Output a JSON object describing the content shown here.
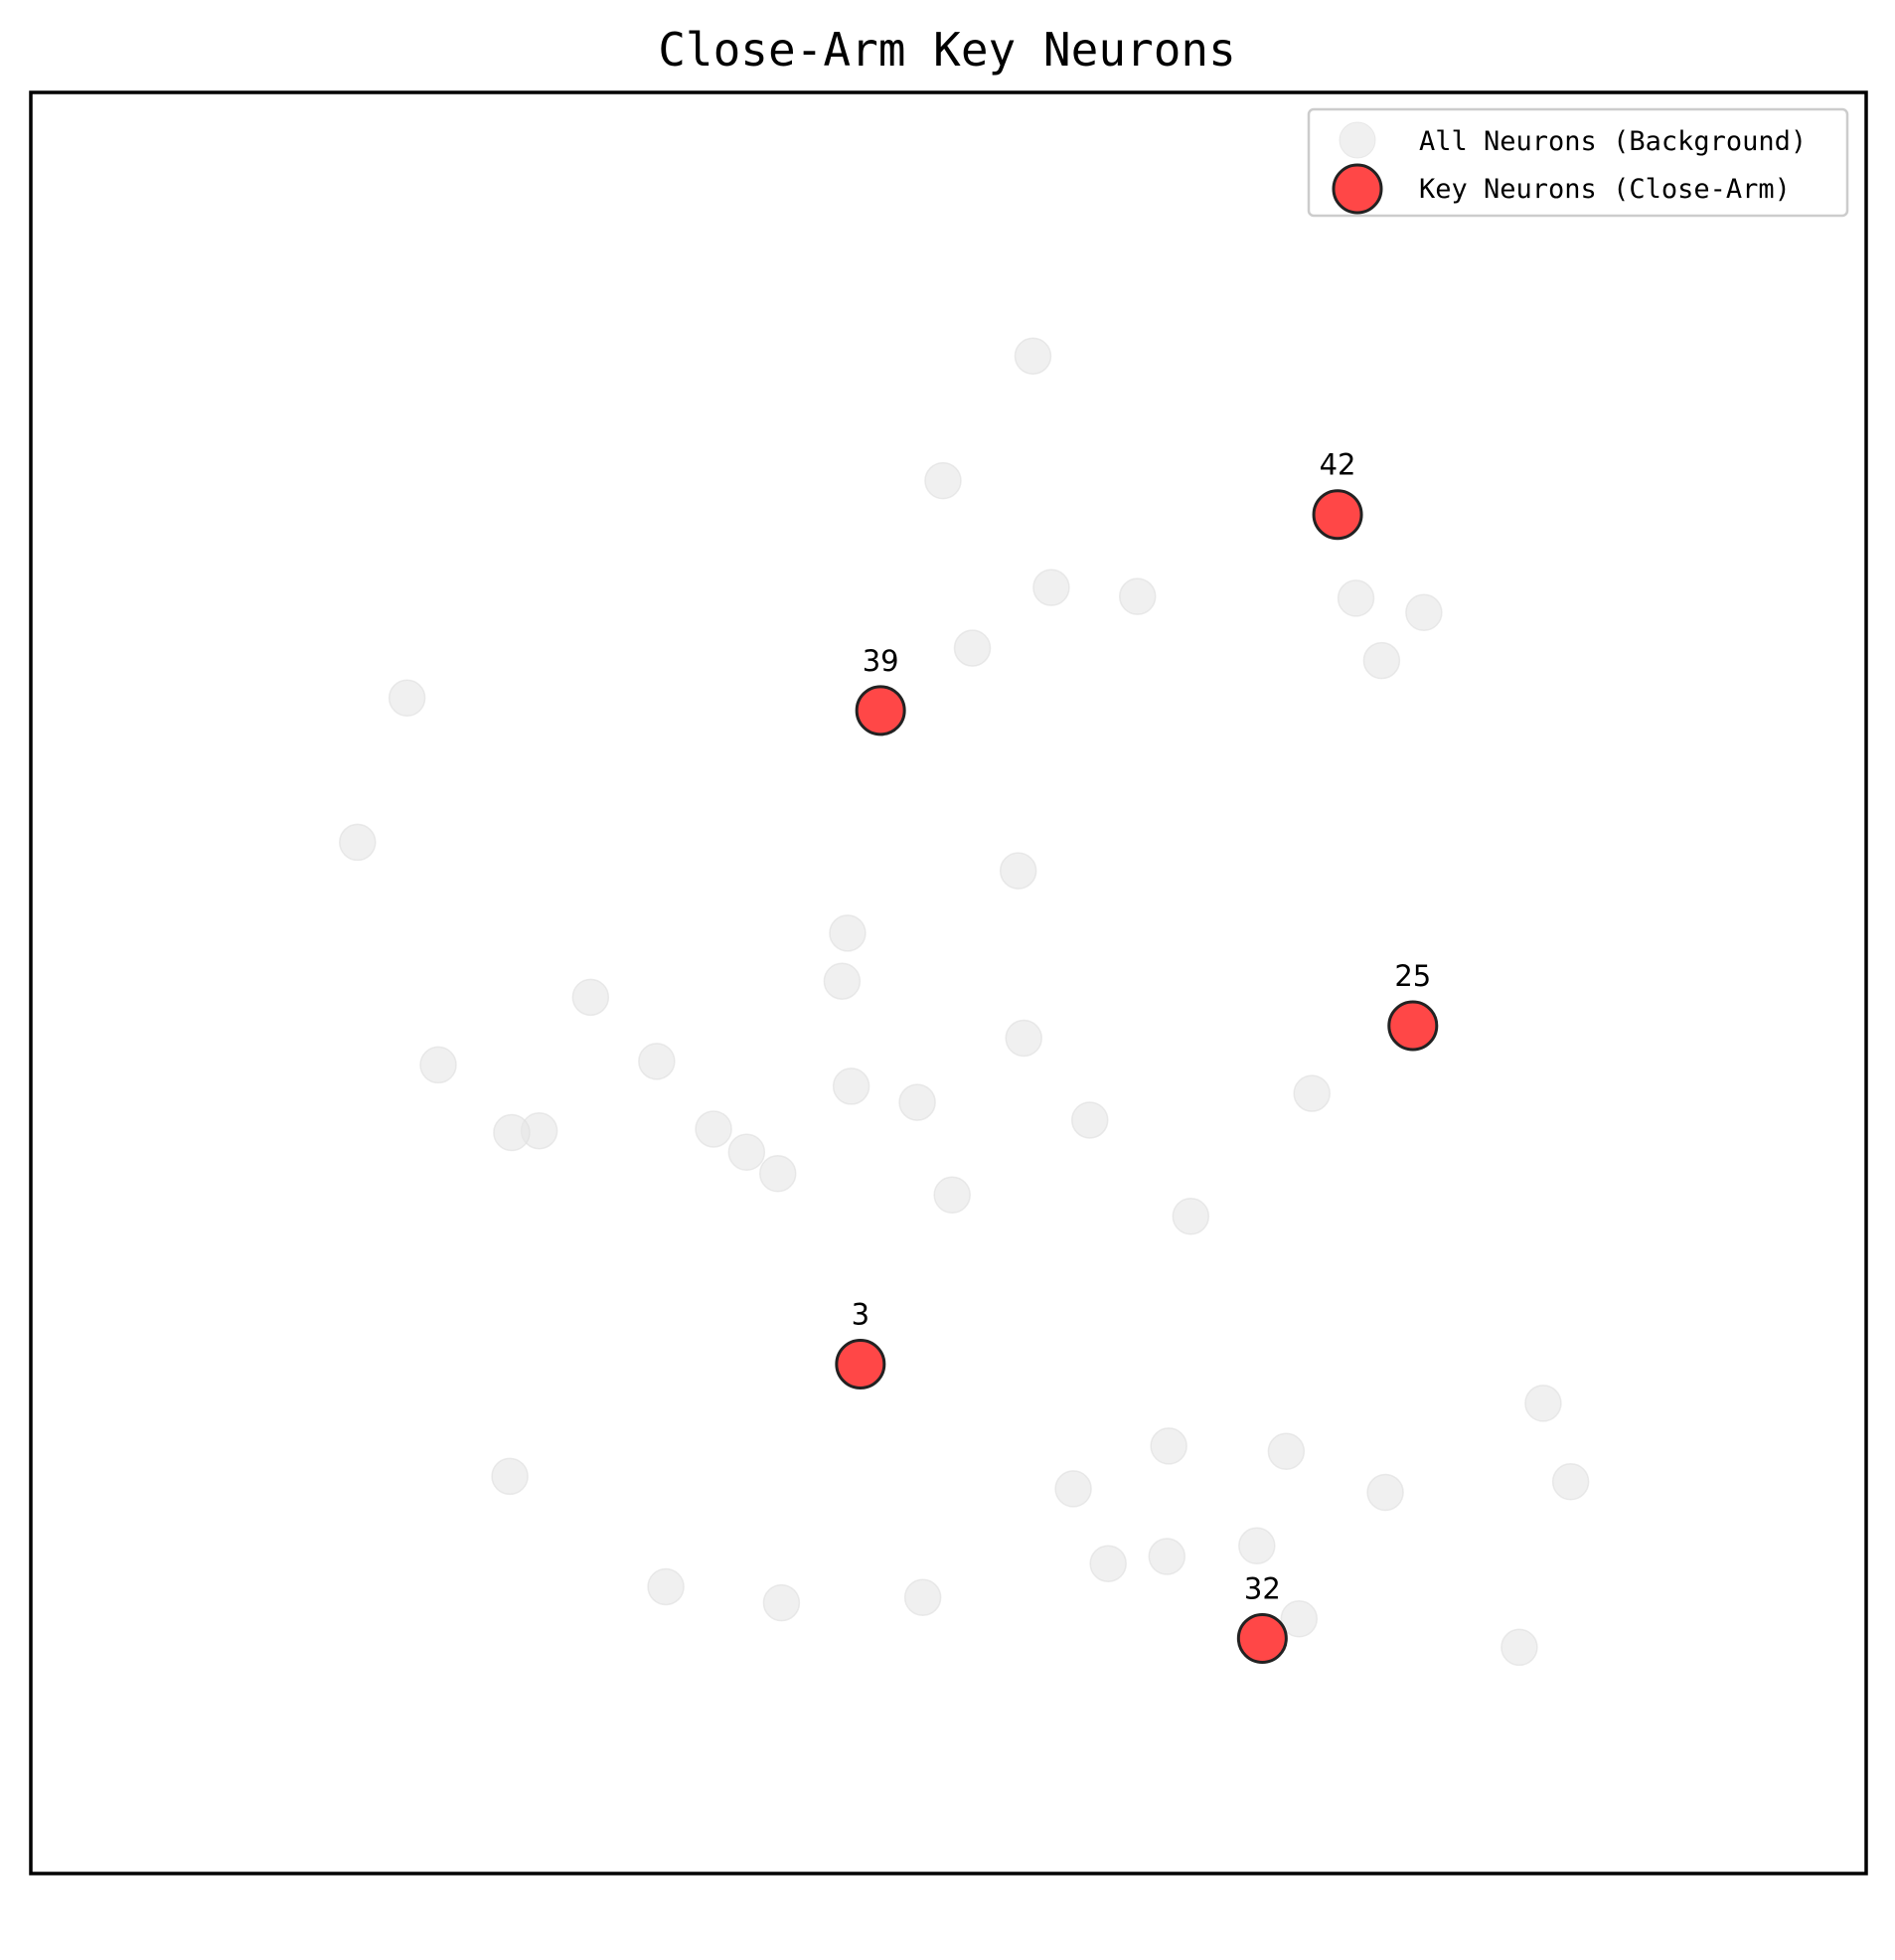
{
  "chart_data": {
    "type": "scatter",
    "title": "Close-Arm Key Neurons",
    "xlabel": "",
    "ylabel": "",
    "xlim": [
      0,
      100
    ],
    "ylim": [
      0,
      100
    ],
    "grid": false,
    "axes_ticks": false,
    "legend_position": "top-right",
    "colors": {
      "background_points": "#e6e6e6",
      "key_points": "#ff3333",
      "key_points_edge": "#222222",
      "frame": "#000000"
    },
    "series": [
      {
        "name": "All Neurons (Background)",
        "role": "background",
        "x": [
          54.6,
          49.7,
          55.6,
          60.3,
          72.2,
          75.9,
          51.3,
          73.6,
          20.5,
          17.8,
          53.8,
          44.5,
          44.2,
          30.5,
          54.1,
          34.1,
          22.2,
          44.7,
          69.8,
          48.3,
          57.7,
          37.2,
          27.7,
          26.2,
          39.0,
          40.7,
          50.2,
          63.2,
          82.4,
          62.0,
          68.4,
          26.1,
          83.9,
          56.8,
          73.8,
          66.8,
          61.9,
          58.7,
          34.6,
          48.6,
          40.9,
          69.1,
          81.1
        ],
        "y": [
          85.2,
          78.2,
          72.2,
          71.7,
          71.6,
          70.8,
          68.8,
          68.1,
          66.0,
          57.9,
          56.3,
          52.8,
          50.1,
          49.2,
          46.9,
          45.6,
          45.4,
          44.2,
          43.8,
          43.3,
          42.3,
          41.8,
          41.7,
          41.6,
          40.5,
          39.3,
          38.1,
          36.9,
          26.4,
          24.0,
          23.7,
          22.3,
          22.0,
          21.6,
          21.4,
          18.4,
          17.8,
          17.4,
          16.1,
          15.5,
          15.2,
          14.3,
          12.7
        ]
      },
      {
        "name": "Key Neurons (Close-Arm)",
        "role": "key",
        "ids": [
          "42",
          "39",
          "25",
          "3",
          "32"
        ],
        "x": [
          71.2,
          46.3,
          75.3,
          45.2,
          67.1
        ],
        "y": [
          76.3,
          65.3,
          47.6,
          28.6,
          13.2
        ]
      }
    ]
  }
}
